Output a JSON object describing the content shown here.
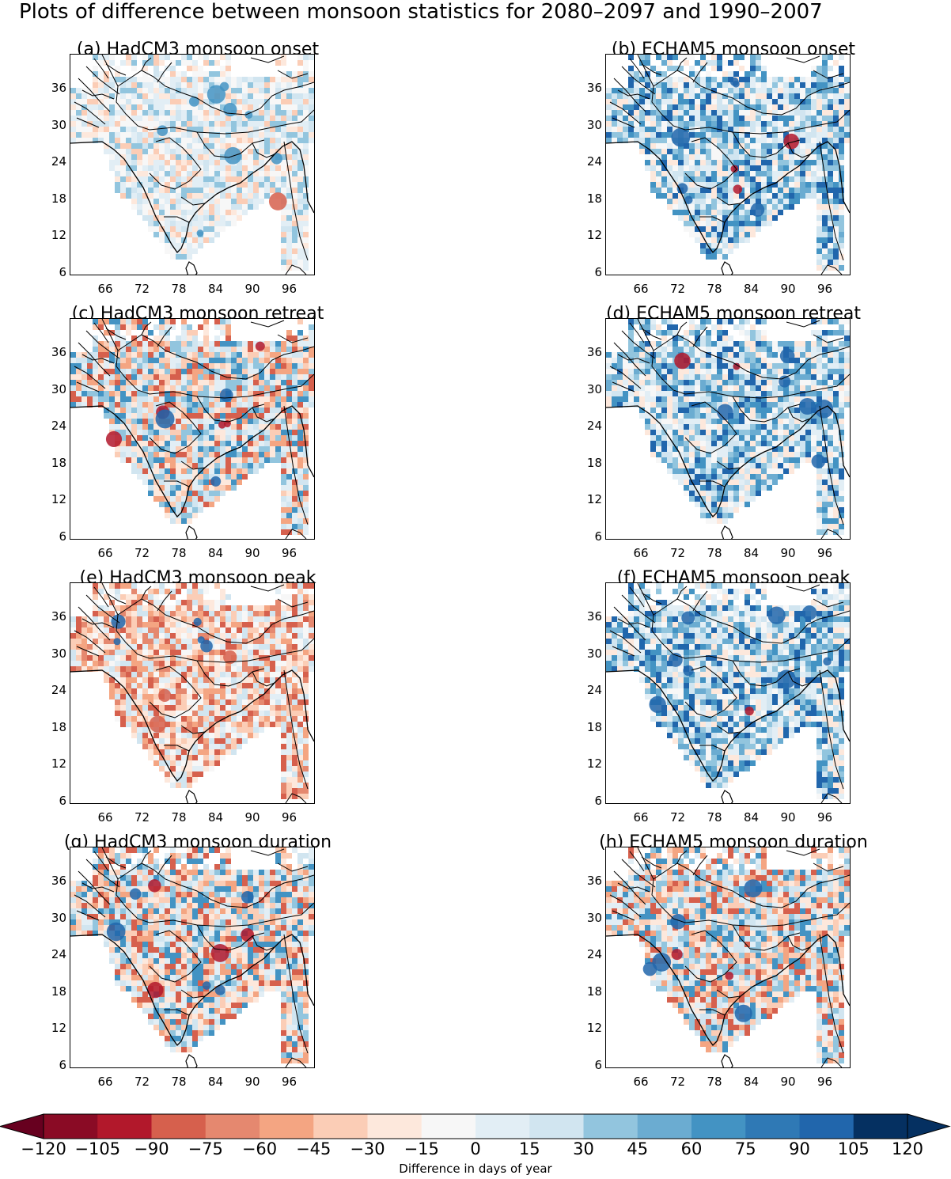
{
  "figure_title": "Plots of difference between monsoon statistics for 2080–2097 and 1990–2007",
  "panels": [
    {
      "label": "(a)  HadCM3 monsoon onset",
      "id": "a",
      "style": "light"
    },
    {
      "label": "(b)  ECHAM5 monsoon onset",
      "id": "b",
      "style": "blue"
    },
    {
      "label": "(c)  HadCM3 monsoon retreat",
      "id": "c",
      "style": "mixed"
    },
    {
      "label": "(d)  ECHAM5 monsoon retreat",
      "id": "d",
      "style": "blue"
    },
    {
      "label": "(e)  HadCM3 monsoon peak",
      "id": "e",
      "style": "red"
    },
    {
      "label": "(f)  ECHAM5 monsoon peak",
      "id": "f",
      "style": "blue"
    },
    {
      "label": "(g)  HadCM3 monsoon duration",
      "id": "g",
      "style": "mixed"
    },
    {
      "label": "(h)  ECHAM5 monsoon duration",
      "id": "h",
      "style": "mixed"
    }
  ],
  "lat_ticks": [
    "36",
    "30",
    "24",
    "18",
    "12",
    "6"
  ],
  "lon_ticks": [
    "66",
    "72",
    "78",
    "84",
    "90",
    "96"
  ],
  "colorbar": {
    "label": "Difference in days of year",
    "ticks": [
      "−120",
      "−105",
      "−90",
      "−75",
      "−60",
      "−45",
      "−30",
      "−15",
      "0",
      "15",
      "30",
      "45",
      "60",
      "75",
      "90",
      "105",
      "120"
    ],
    "colors": [
      "#67001f",
      "#8a0b25",
      "#b2182b",
      "#d6604d",
      "#e5886f",
      "#f4a582",
      "#fbcdb6",
      "#fde8dc",
      "#f7f7f7",
      "#e2eef5",
      "#d1e5f0",
      "#92c5de",
      "#6bacd1",
      "#4393c3",
      "#2f79b5",
      "#2166ac",
      "#053061"
    ]
  }
}
